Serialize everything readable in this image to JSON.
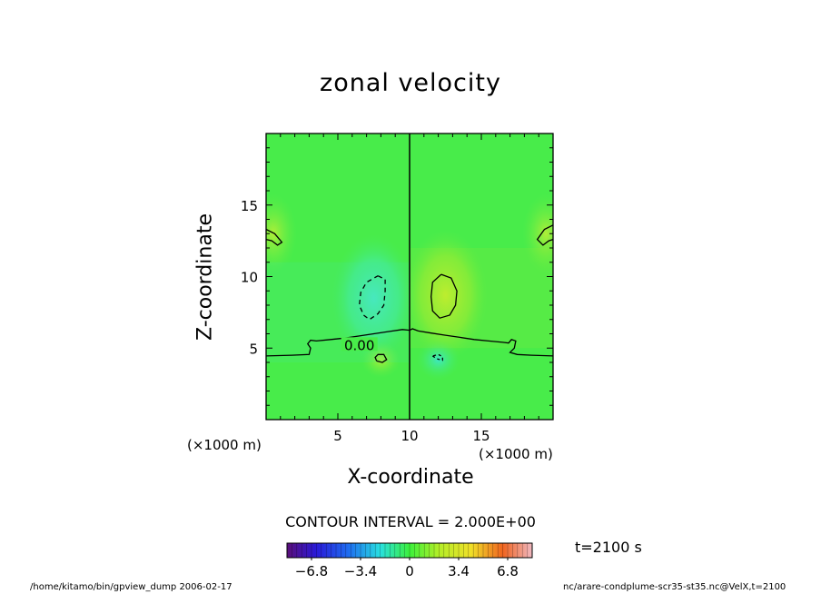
{
  "chart_data": {
    "type": "contour",
    "title": "zonal velocity",
    "xlabel": "X-coordinate",
    "ylabel": "Z-coordinate",
    "x_unit": "(×1000 m)",
    "y_unit": "(×1000 m)",
    "xlim": [
      0,
      20
    ],
    "ylim": [
      0,
      20
    ],
    "x_ticks": [
      5,
      10,
      15
    ],
    "y_ticks": [
      5,
      10,
      15
    ],
    "contour_interval_text": "CONTOUR INTERVAL = 2.000E+00",
    "contour_label": "0.00",
    "colorbar": {
      "min": -8.5,
      "max": 8.5,
      "tick_values": [
        -6.8,
        -3.4,
        0,
        3.4,
        6.8
      ],
      "tick_labels": [
        "−6.8",
        "−3.4",
        "0",
        "3.4",
        "6.8"
      ]
    },
    "time_label": "t=2100 s",
    "features": [
      {
        "kind": "negative-min",
        "x": 7.5,
        "z": 8.5,
        "value": -3.0
      },
      {
        "kind": "positive-max",
        "x": 12.5,
        "z": 8.7,
        "value": 3.0
      },
      {
        "kind": "positive-small",
        "x": 8.0,
        "z": 4.2,
        "value": 1.0
      },
      {
        "kind": "negative-small",
        "x": 12.0,
        "z": 4.2,
        "value": -1.0
      },
      {
        "kind": "positive-edge",
        "x": 19.5,
        "z": 13.0,
        "value": 0.5
      },
      {
        "kind": "positive-edge",
        "x": 0.5,
        "z": 13.0,
        "value": 0.5
      }
    ],
    "plume_axis_x": 10
  },
  "footer": {
    "left": "/home/kitamo/bin/gpview_dump  2006-02-17",
    "right": "nc/arare-condplume-scr35-st35.nc@VelX,t=2100"
  }
}
